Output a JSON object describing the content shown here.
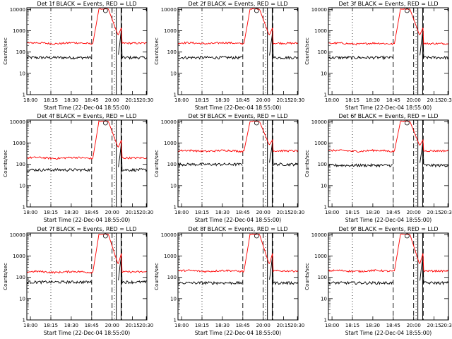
{
  "figure": {
    "y_axis_label": "Counts/sec",
    "x_axis_label": "Start Time (22-Dec-04 18:55:00)",
    "x_ticks": [
      "18:00",
      "18:15",
      "18:30",
      "18:45",
      "20:00",
      "20:15",
      "20:30"
    ],
    "y_ticks": [
      "1",
      "10",
      "100",
      "1000",
      "10000"
    ],
    "colors": {
      "events": "#000000",
      "lld": "#ff0000",
      "background": "#ffffff"
    }
  },
  "chart_data": [
    {
      "type": "line",
      "title": "Det 1f BLACK = Events, RED = LLD",
      "ylabel": "Counts/sec",
      "xlabel": "Start Time (22-Dec-04 18:55:00)",
      "x_ticks": [
        "18:00",
        "18:15",
        "18:30",
        "18:45",
        "20:00",
        "20:15",
        "20:30"
      ],
      "y_scale": "log",
      "ylim": [
        1,
        12000
      ],
      "series": [
        {
          "name": "Events",
          "color": "#000000",
          "baseline": 55,
          "peak": 1500
        },
        {
          "name": "LLD",
          "color": "#ff0000",
          "baseline": 260,
          "peak": 10000,
          "dip": 600
        }
      ]
    },
    {
      "type": "line",
      "title": "Det 2f BLACK = Events, RED = LLD",
      "ylabel": "Counts/sec",
      "xlabel": "Start Time (22-Dec-04 18:55:00)",
      "x_ticks": [
        "18:00",
        "18:15",
        "18:30",
        "18:45",
        "20:00",
        "20:15",
        "20:30"
      ],
      "y_scale": "log",
      "ylim": [
        1,
        12000
      ],
      "series": [
        {
          "name": "Events",
          "color": "#000000",
          "baseline": 55,
          "peak": 1200
        },
        {
          "name": "LLD",
          "color": "#ff0000",
          "baseline": 260,
          "peak": 10000,
          "dip": 600
        }
      ]
    },
    {
      "type": "line",
      "title": "Det 3f BLACK = Events, RED = LLD",
      "ylabel": "Counts/sec",
      "xlabel": "Start Time (22-Dec-04 18:55:00)",
      "x_ticks": [
        "18:00",
        "18:15",
        "18:30",
        "18:45",
        "20:00",
        "20:15",
        "20:30"
      ],
      "y_scale": "log",
      "ylim": [
        1,
        12000
      ],
      "series": [
        {
          "name": "Events",
          "color": "#000000",
          "baseline": 55,
          "peak": 1500
        },
        {
          "name": "LLD",
          "color": "#ff0000",
          "baseline": 250,
          "peak": 10000,
          "dip": 600
        }
      ]
    },
    {
      "type": "line",
      "title": "Det 4f BLACK = Events, RED = LLD",
      "ylabel": "Counts/sec",
      "xlabel": "Start Time (22-Dec-04 18:55:00)",
      "x_ticks": [
        "18:00",
        "18:15",
        "18:30",
        "18:45",
        "20:00",
        "20:15",
        "20:30"
      ],
      "y_scale": "log",
      "ylim": [
        1,
        12000
      ],
      "series": [
        {
          "name": "Events",
          "color": "#000000",
          "baseline": 55,
          "peak": 1500
        },
        {
          "name": "LLD",
          "color": "#ff0000",
          "baseline": 200,
          "peak": 10000,
          "dip": 600
        }
      ]
    },
    {
      "type": "line",
      "title": "Det 5f BLACK = Events, RED = LLD",
      "ylabel": "Counts/sec",
      "xlabel": "Start Time (22-Dec-04 18:55:00)",
      "x_ticks": [
        "18:00",
        "18:15",
        "18:30",
        "18:45",
        "20:00",
        "20:15",
        "20:30"
      ],
      "y_scale": "log",
      "ylim": [
        1,
        12000
      ],
      "series": [
        {
          "name": "Events",
          "color": "#000000",
          "baseline": 100,
          "peak": 1500
        },
        {
          "name": "LLD",
          "color": "#ff0000",
          "baseline": 430,
          "peak": 10000,
          "dip": 800
        }
      ]
    },
    {
      "type": "line",
      "title": "Det 6f BLACK = Events, RED = LLD",
      "ylabel": "Counts/sec",
      "xlabel": "Start Time (22-Dec-04 18:55:00)",
      "x_ticks": [
        "18:00",
        "18:15",
        "18:30",
        "18:45",
        "20:00",
        "20:15",
        "20:30"
      ],
      "y_scale": "log",
      "ylim": [
        1,
        12000
      ],
      "series": [
        {
          "name": "Events",
          "color": "#000000",
          "baseline": 90,
          "peak": 1500
        },
        {
          "name": "LLD",
          "color": "#ff0000",
          "baseline": 430,
          "peak": 10000,
          "dip": 750
        }
      ]
    },
    {
      "type": "line",
      "title": "Det 7f BLACK = Events, RED = LLD",
      "ylabel": "Counts/sec",
      "xlabel": "Start Time (22-Dec-04 18:55:00)",
      "x_ticks": [
        "18:00",
        "18:15",
        "18:30",
        "18:45",
        "20:00",
        "20:15",
        "20:30"
      ],
      "y_scale": "log",
      "ylim": [
        1,
        12000
      ],
      "series": [
        {
          "name": "Events",
          "color": "#000000",
          "baseline": 60,
          "peak": 1500
        },
        {
          "name": "LLD",
          "color": "#ff0000",
          "baseline": 180,
          "peak": 10000,
          "dip": 400
        }
      ]
    },
    {
      "type": "line",
      "title": "Det 8f BLACK = Events, RED = LLD",
      "ylabel": "Counts/sec",
      "xlabel": "Start Time (22-Dec-04 18:55:00)",
      "x_ticks": [
        "18:00",
        "18:15",
        "18:30",
        "18:45",
        "20:00",
        "20:15",
        "20:30"
      ],
      "y_scale": "log",
      "ylim": [
        1,
        12000
      ],
      "series": [
        {
          "name": "Events",
          "color": "#000000",
          "baseline": 55,
          "peak": 1500
        },
        {
          "name": "LLD",
          "color": "#ff0000",
          "baseline": 200,
          "peak": 10000,
          "dip": 400
        }
      ]
    },
    {
      "type": "line",
      "title": "Det 9f BLACK = Events, RED = LLD",
      "ylabel": "Counts/sec",
      "xlabel": "Start Time (22-Dec-04 18:55:00)",
      "x_ticks": [
        "18:00",
        "18:15",
        "18:30",
        "18:45",
        "20:00",
        "20:15",
        "20:30"
      ],
      "y_scale": "log",
      "ylim": [
        1,
        12000
      ],
      "series": [
        {
          "name": "Events",
          "color": "#000000",
          "baseline": 55,
          "peak": 1500
        },
        {
          "name": "LLD",
          "color": "#ff0000",
          "baseline": 200,
          "peak": 10000,
          "dip": 400
        }
      ]
    }
  ]
}
